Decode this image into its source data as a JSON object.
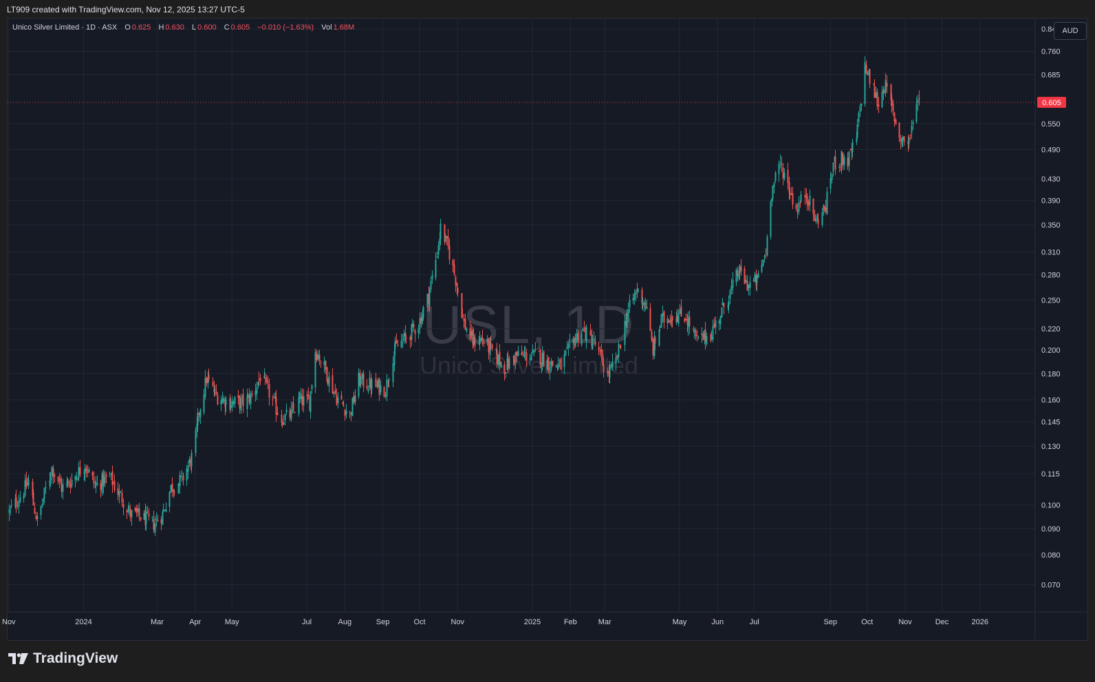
{
  "header": {
    "text": "LT909 created with TradingView.com, Nov 12, 2025 13:27 UTC-5"
  },
  "legend": {
    "symbol_line": "Unico Silver Limited · 1D · ASX",
    "o_label": "O",
    "o_val": "0.625",
    "h_label": "H",
    "h_val": "0.630",
    "l_label": "L",
    "l_val": "0.600",
    "c_label": "C",
    "c_val": "0.605",
    "change": "−0.010 (−1.63%)",
    "vol_label": "Vol",
    "vol_val": "1.68M"
  },
  "currency_button": "AUD",
  "watermark": {
    "symbol": "USL, 1D",
    "name": "Unico Silver Limited"
  },
  "price_tag": "0.605",
  "footer": {
    "brand": "TradingView"
  },
  "colors": {
    "up": "#26a69a",
    "down": "#ef5350",
    "last_price": "#f23645",
    "background": "#161a25",
    "grid": "#232733"
  },
  "chart_data": {
    "type": "candlestick",
    "title": "Unico Silver Limited · 1D · ASX",
    "xlabel": "",
    "ylabel": "AUD",
    "y_scale": "log",
    "ylim": [
      0.062,
      0.88
    ],
    "grid": true,
    "last_price": 0.605,
    "y_ticks": [
      0.84,
      0.76,
      0.685,
      0.55,
      0.49,
      0.43,
      0.39,
      0.35,
      0.31,
      0.28,
      0.25,
      0.22,
      0.2,
      0.18,
      0.16,
      0.145,
      0.13,
      0.115,
      0.1,
      0.09,
      0.08,
      0.07
    ],
    "y_tick_labels": [
      "0.840",
      "0.760",
      "0.685",
      "0.550",
      "0.490",
      "0.430",
      "0.390",
      "0.350",
      "0.310",
      "0.280",
      "0.250",
      "0.220",
      "0.200",
      "0.180",
      "0.160",
      "0.145",
      "0.130",
      "0.115",
      "0.100",
      "0.090",
      "0.080",
      "0.070"
    ],
    "x_tick_labels": [
      "Nov",
      "2024",
      "Mar",
      "Apr",
      "May",
      "Jul",
      "Aug",
      "Sep",
      "Oct",
      "Nov",
      "2025",
      "Feb",
      "Mar",
      "May",
      "Jun",
      "Jul",
      "Sep",
      "Oct",
      "Nov",
      "Dec",
      "2026"
    ],
    "x_tick_dates": [
      "2023-11-01",
      "2024-01-01",
      "2024-03-01",
      "2024-04-01",
      "2024-05-01",
      "2024-07-01",
      "2024-08-01",
      "2024-09-01",
      "2024-10-01",
      "2024-11-01",
      "2025-01-01",
      "2025-02-01",
      "2025-03-01",
      "2025-05-01",
      "2025-06-01",
      "2025-07-01",
      "2025-09-01",
      "2025-10-01",
      "2025-11-01",
      "2025-12-01",
      "2026-01-01"
    ],
    "xlim": [
      "2023-10-31",
      "2026-02-15"
    ],
    "price_path": [
      [
        "2023-11-01",
        0.097
      ],
      [
        "2023-11-10",
        0.104
      ],
      [
        "2023-11-17",
        0.111
      ],
      [
        "2023-11-24",
        0.093
      ],
      [
        "2023-11-30",
        0.105
      ],
      [
        "2023-12-06",
        0.118
      ],
      [
        "2023-12-14",
        0.108
      ],
      [
        "2023-12-21",
        0.111
      ],
      [
        "2024-01-02",
        0.12
      ],
      [
        "2024-01-10",
        0.109
      ],
      [
        "2024-01-22",
        0.113
      ],
      [
        "2024-01-30",
        0.105
      ],
      [
        "2024-02-08",
        0.096
      ],
      [
        "2024-02-16",
        0.095
      ],
      [
        "2024-02-27",
        0.092
      ],
      [
        "2024-03-05",
        0.096
      ],
      [
        "2024-03-12",
        0.108
      ],
      [
        "2024-03-21",
        0.112
      ],
      [
        "2024-03-30",
        0.125
      ],
      [
        "2024-04-04",
        0.152
      ],
      [
        "2024-04-10",
        0.176
      ],
      [
        "2024-04-18",
        0.163
      ],
      [
        "2024-04-29",
        0.158
      ],
      [
        "2024-05-10",
        0.158
      ],
      [
        "2024-05-17",
        0.163
      ],
      [
        "2024-05-24",
        0.178
      ],
      [
        "2024-05-31",
        0.165
      ],
      [
        "2024-06-10",
        0.147
      ],
      [
        "2024-06-18",
        0.15
      ],
      [
        "2024-06-25",
        0.16
      ],
      [
        "2024-07-03",
        0.158
      ],
      [
        "2024-07-08",
        0.2
      ],
      [
        "2024-07-15",
        0.185
      ],
      [
        "2024-07-25",
        0.162
      ],
      [
        "2024-08-05",
        0.15
      ],
      [
        "2024-08-12",
        0.175
      ],
      [
        "2024-08-19",
        0.172
      ],
      [
        "2024-08-26",
        0.17
      ],
      [
        "2024-09-03",
        0.168
      ],
      [
        "2024-09-10",
        0.2
      ],
      [
        "2024-09-20",
        0.212
      ],
      [
        "2024-09-30",
        0.225
      ],
      [
        "2024-10-08",
        0.255
      ],
      [
        "2024-10-14",
        0.3
      ],
      [
        "2024-10-18",
        0.345
      ],
      [
        "2024-10-24",
        0.315
      ],
      [
        "2024-10-30",
        0.275
      ],
      [
        "2024-11-06",
        0.225
      ],
      [
        "2024-11-13",
        0.208
      ],
      [
        "2024-11-20",
        0.21
      ],
      [
        "2024-11-28",
        0.2
      ],
      [
        "2024-12-09",
        0.185
      ],
      [
        "2024-12-18",
        0.195
      ],
      [
        "2025-01-06",
        0.195
      ],
      [
        "2025-01-15",
        0.188
      ],
      [
        "2025-01-24",
        0.186
      ],
      [
        "2025-02-04",
        0.21
      ],
      [
        "2025-02-11",
        0.218
      ],
      [
        "2025-02-21",
        0.205
      ],
      [
        "2025-03-03",
        0.178
      ],
      [
        "2025-03-10",
        0.19
      ],
      [
        "2025-03-19",
        0.235
      ],
      [
        "2025-03-27",
        0.262
      ],
      [
        "2025-04-03",
        0.245
      ],
      [
        "2025-04-09",
        0.2
      ],
      [
        "2025-04-16",
        0.228
      ],
      [
        "2025-04-26",
        0.235
      ],
      [
        "2025-05-06",
        0.232
      ],
      [
        "2025-05-15",
        0.208
      ],
      [
        "2025-05-26",
        0.215
      ],
      [
        "2025-06-03",
        0.235
      ],
      [
        "2025-06-11",
        0.258
      ],
      [
        "2025-06-18",
        0.285
      ],
      [
        "2025-06-25",
        0.268
      ],
      [
        "2025-07-03",
        0.272
      ],
      [
        "2025-07-10",
        0.31
      ],
      [
        "2025-07-14",
        0.4
      ],
      [
        "2025-07-22",
        0.46
      ],
      [
        "2025-07-28",
        0.42
      ],
      [
        "2025-08-04",
        0.375
      ],
      [
        "2025-08-12",
        0.405
      ],
      [
        "2025-08-20",
        0.355
      ],
      [
        "2025-08-28",
        0.38
      ],
      [
        "2025-09-03",
        0.46
      ],
      [
        "2025-09-10",
        0.47
      ],
      [
        "2025-09-15",
        0.465
      ],
      [
        "2025-09-22",
        0.515
      ],
      [
        "2025-09-29",
        0.71
      ],
      [
        "2025-10-06",
        0.64
      ],
      [
        "2025-10-10",
        0.6
      ],
      [
        "2025-10-15",
        0.66
      ],
      [
        "2025-10-20",
        0.6
      ],
      [
        "2025-10-27",
        0.52
      ],
      [
        "2025-11-03",
        0.505
      ],
      [
        "2025-11-07",
        0.545
      ],
      [
        "2025-11-10",
        0.62
      ],
      [
        "2025-11-12",
        0.605
      ]
    ]
  }
}
